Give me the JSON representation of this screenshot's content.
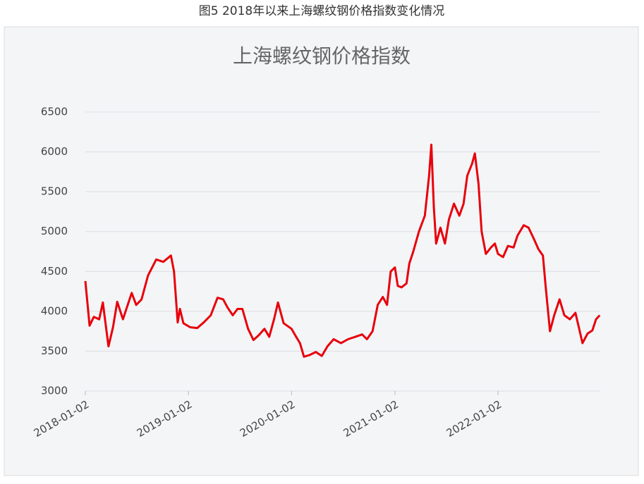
{
  "caption": "图5  2018年以来上海螺纹钢价格指数变化情况",
  "chart_data": {
    "type": "line",
    "title": "上海螺纹钢价格指数",
    "x": [
      "2018-01-02",
      "2018-01-17",
      "2018-02-01",
      "2018-02-20",
      "2018-03-05",
      "2018-03-25",
      "2018-04-10",
      "2018-04-25",
      "2018-05-15",
      "2018-06-15",
      "2018-07-01",
      "2018-07-20",
      "2018-08-12",
      "2018-09-10",
      "2018-10-05",
      "2018-11-01",
      "2018-11-12",
      "2018-11-25",
      "2018-12-03",
      "2018-12-15",
      "2019-01-08",
      "2019-02-02",
      "2019-02-25",
      "2019-03-22",
      "2019-04-15",
      "2019-05-05",
      "2019-05-20",
      "2019-06-08",
      "2019-06-25",
      "2019-07-12",
      "2019-08-01",
      "2019-08-20",
      "2019-09-08",
      "2019-09-28",
      "2019-10-15",
      "2019-11-01",
      "2019-11-15",
      "2019-12-05",
      "2020-01-02",
      "2020-01-15",
      "2020-02-01",
      "2020-02-15",
      "2020-03-05",
      "2020-03-28",
      "2020-04-18",
      "2020-05-08",
      "2020-05-30",
      "2020-06-25",
      "2020-07-20",
      "2020-08-15",
      "2020-09-08",
      "2020-09-25",
      "2020-10-15",
      "2020-11-02",
      "2020-11-20",
      "2020-12-05",
      "2020-12-18",
      "2021-01-02",
      "2021-01-12",
      "2021-01-25",
      "2021-02-12",
      "2021-02-22",
      "2021-03-08",
      "2021-03-28",
      "2021-04-18",
      "2021-05-03",
      "2021-05-11",
      "2021-05-20",
      "2021-05-28",
      "2021-06-12",
      "2021-06-28",
      "2021-07-12",
      "2021-07-30",
      "2021-08-18",
      "2021-09-02",
      "2021-09-15",
      "2021-10-02",
      "2021-10-12",
      "2021-10-25",
      "2021-11-05",
      "2021-11-20",
      "2021-12-08",
      "2021-12-22",
      "2022-01-02",
      "2022-01-20",
      "2022-02-06",
      "2022-02-26",
      "2022-03-12",
      "2022-04-03",
      "2022-04-20",
      "2022-05-10",
      "2022-05-25",
      "2022-06-10",
      "2022-06-20",
      "2022-07-05",
      "2022-07-20",
      "2022-08-08",
      "2022-08-25",
      "2022-09-13",
      "2022-10-03",
      "2022-10-15",
      "2022-10-28",
      "2022-11-15",
      "2022-12-02",
      "2022-12-15",
      "2022-12-28"
    ],
    "series": [
      {
        "name": "上海螺纹钢价格指数",
        "color": "#e8000b",
        "values": [
          4380,
          3820,
          3930,
          3900,
          4110,
          3560,
          3800,
          4120,
          3900,
          4230,
          4080,
          4150,
          4450,
          4650,
          4620,
          4700,
          4500,
          3860,
          4030,
          3850,
          3800,
          3790,
          3860,
          3950,
          4170,
          4150,
          4050,
          3950,
          4030,
          4030,
          3780,
          3640,
          3700,
          3780,
          3680,
          3900,
          4110,
          3850,
          3780,
          3700,
          3600,
          3430,
          3450,
          3490,
          3440,
          3560,
          3650,
          3600,
          3650,
          3680,
          3710,
          3650,
          3750,
          4080,
          4180,
          4080,
          4500,
          4550,
          4320,
          4300,
          4350,
          4600,
          4750,
          5000,
          5200,
          5700,
          6090,
          5300,
          4850,
          5050,
          4850,
          5150,
          5350,
          5200,
          5350,
          5700,
          5850,
          5980,
          5600,
          5000,
          4720,
          4800,
          4850,
          4720,
          4680,
          4820,
          4800,
          4950,
          5080,
          5050,
          4900,
          4780,
          4700,
          4300,
          3750,
          3950,
          4150,
          3950,
          3900,
          3980,
          3800,
          3600,
          3720,
          3760,
          3900,
          3950
        ]
      }
    ],
    "xlim": [
      "2018-01-02",
      "2022-12-30"
    ],
    "xticks": [
      "2018-01-02",
      "2019-01-02",
      "2020-01-02",
      "2021-01-02",
      "2022-01-02"
    ],
    "ylim": [
      3000,
      6500
    ],
    "yticks": [
      3000,
      3500,
      4000,
      4500,
      5000,
      5500,
      6000,
      6500
    ],
    "grid": true
  }
}
